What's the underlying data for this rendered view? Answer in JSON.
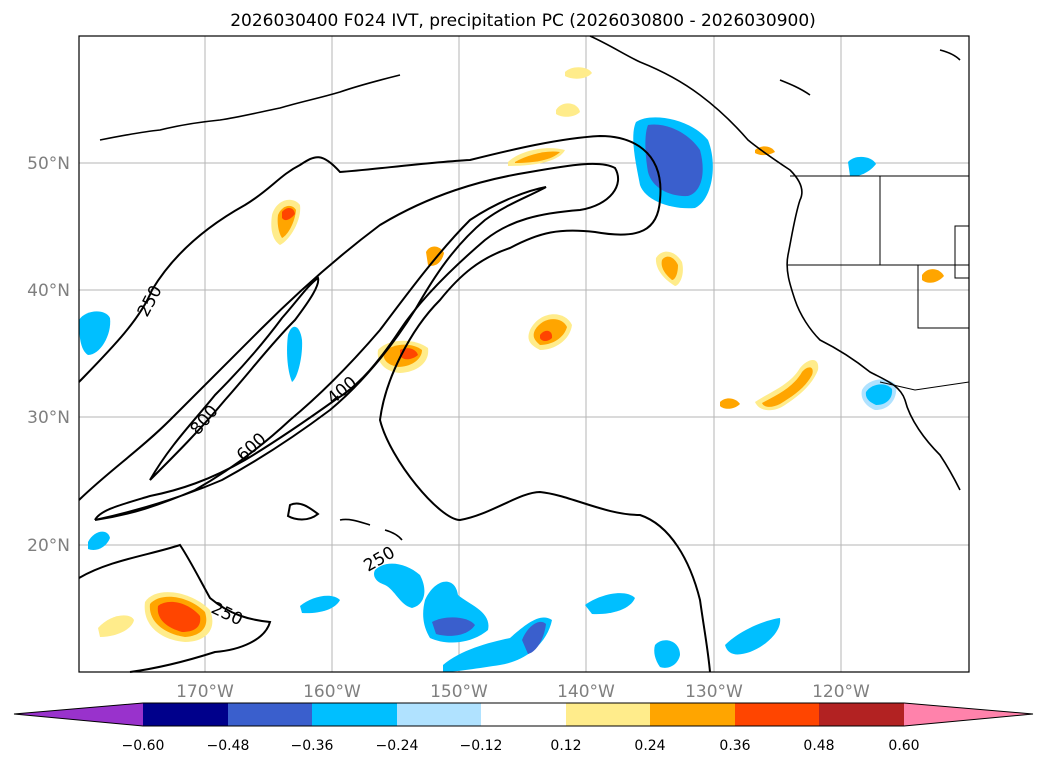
{
  "title": "2026030400 F024 IVT, precipitation PC (2026030800 - 2026030900)",
  "lat_labels": [
    "50°N",
    "40°N",
    "30°N",
    "20°N"
  ],
  "lon_labels": [
    "170°W",
    "160°W",
    "150°W",
    "140°W",
    "130°W",
    "120°W"
  ],
  "colorbar": {
    "colors": [
      "#9932cc",
      "#00008b",
      "#3a5fcd",
      "#00bfff",
      "#b0e2ff",
      "#ffffff",
      "#ffec8b",
      "#ffa500",
      "#ff4500",
      "#b22222",
      "#ff82ab"
    ],
    "tick_labels": [
      "−0.60",
      "−0.48",
      "−0.36",
      "−0.24",
      "−0.12",
      "0.12",
      "0.24",
      "0.36",
      "0.48",
      "0.60"
    ]
  },
  "contour_labels": [
    "250",
    "800",
    "600",
    "400",
    "250",
    "250"
  ],
  "contour_levels": [
    250,
    400,
    600,
    800
  ]
}
